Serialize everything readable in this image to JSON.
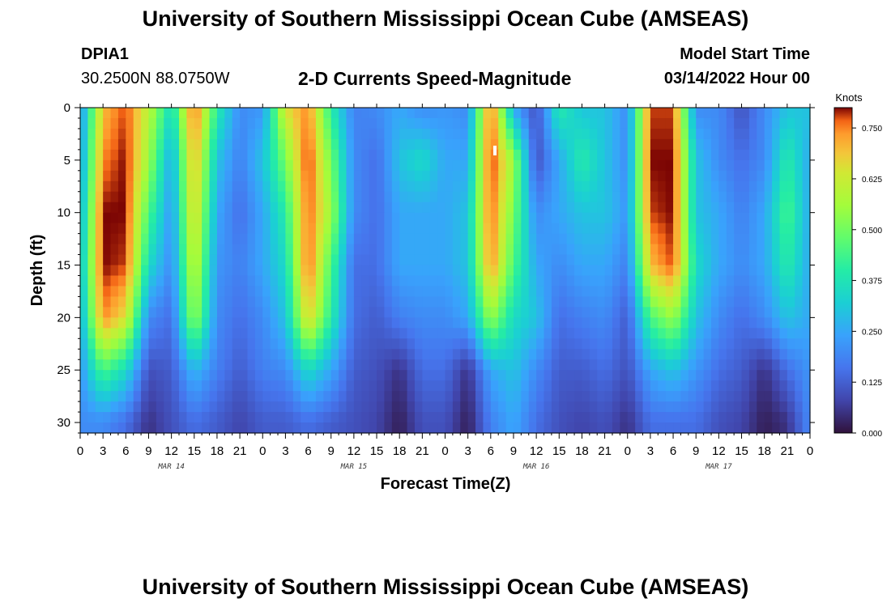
{
  "header": {
    "title_top": "University of Southern Mississippi Ocean Cube (AMSEAS)",
    "title_bottom": "University of Southern Mississippi Ocean Cube (AMSEAS)",
    "station": "DPIA1",
    "coords": "30.2500N  88.0750W",
    "subtitle": "2-D Currents Speed-Magnitude",
    "model_label": "Model Start Time",
    "model_time": "03/14/2022 Hour 00"
  },
  "chart_data": {
    "type": "heatmap",
    "title": "2-D Currents Speed-Magnitude",
    "xlabel": "Forecast Time(Z)",
    "ylabel": "Depth (ft)",
    "x_range_hours": [
      0,
      96
    ],
    "y_range_ft": [
      0,
      31
    ],
    "x_tick_hours": [
      0,
      3,
      6,
      9,
      12,
      15,
      18,
      21,
      24,
      27,
      30,
      33,
      36,
      39,
      42,
      45,
      48,
      51,
      54,
      57,
      60,
      63,
      66,
      69,
      72,
      75,
      78,
      81,
      84,
      87,
      90,
      93,
      96
    ],
    "x_tick_labels": [
      "0",
      "3",
      "6",
      "9",
      "12",
      "15",
      "18",
      "21",
      "0",
      "3",
      "6",
      "9",
      "12",
      "15",
      "18",
      "21",
      "0",
      "3",
      "6",
      "9",
      "12",
      "15",
      "18",
      "21",
      "0",
      "3",
      "6",
      "9",
      "12",
      "15",
      "18",
      "21",
      "0"
    ],
    "date_labels": [
      {
        "label": "MAR 14",
        "hour": 12
      },
      {
        "label": "MAR 15",
        "hour": 36
      },
      {
        "label": "MAR 16",
        "hour": 60
      },
      {
        "label": "MAR 17",
        "hour": 84
      }
    ],
    "y_ticks": [
      0,
      5,
      10,
      15,
      20,
      25,
      30
    ],
    "y_tick_labels": [
      "0",
      "5",
      "10",
      "15",
      "20",
      "25",
      "30"
    ],
    "colorbar": {
      "label": "Knots",
      "min": 0,
      "max": 0.8,
      "ticks": [
        0,
        0.125,
        0.25,
        0.375,
        0.5,
        0.625,
        0.75
      ],
      "tick_labels": [
        "0.000",
        "0.125",
        "0.250",
        "0.375",
        "0.500",
        "0.625",
        "0.750"
      ]
    },
    "depths_ft": [
      0,
      5,
      10,
      15,
      20,
      25,
      30
    ],
    "speed_knots_by_depth": [
      [
        0.2,
        0.7,
        0.78,
        0.6,
        0.35,
        0.78,
        0.4,
        0.2,
        0.22,
        0.65,
        0.75,
        0.4,
        0.18,
        0.2,
        0.25,
        0.2,
        0.22,
        0.2,
        0.78,
        0.25,
        0.1,
        0.4,
        0.3,
        0.3,
        0.2,
        0.78,
        0.78,
        0.2,
        0.2,
        0.1,
        0.2,
        0.3,
        0.3
      ],
      [
        0.22,
        0.75,
        0.8,
        0.55,
        0.25,
        0.72,
        0.3,
        0.18,
        0.3,
        0.5,
        0.8,
        0.5,
        0.2,
        0.15,
        0.3,
        0.35,
        0.25,
        0.25,
        0.8,
        0.55,
        0.1,
        0.25,
        0.4,
        0.3,
        0.2,
        0.8,
        0.8,
        0.3,
        0.2,
        0.15,
        0.2,
        0.4,
        0.25
      ],
      [
        0.25,
        0.8,
        0.8,
        0.45,
        0.22,
        0.68,
        0.25,
        0.15,
        0.25,
        0.4,
        0.78,
        0.55,
        0.2,
        0.15,
        0.25,
        0.25,
        0.25,
        0.3,
        0.78,
        0.5,
        0.2,
        0.25,
        0.3,
        0.3,
        0.22,
        0.78,
        0.8,
        0.3,
        0.25,
        0.18,
        0.25,
        0.45,
        0.25
      ],
      [
        0.28,
        0.8,
        0.78,
        0.35,
        0.2,
        0.62,
        0.22,
        0.18,
        0.25,
        0.35,
        0.78,
        0.45,
        0.15,
        0.15,
        0.25,
        0.25,
        0.25,
        0.3,
        0.75,
        0.45,
        0.25,
        0.2,
        0.25,
        0.25,
        0.18,
        0.7,
        0.78,
        0.35,
        0.25,
        0.2,
        0.25,
        0.4,
        0.25
      ],
      [
        0.25,
        0.75,
        0.65,
        0.2,
        0.15,
        0.55,
        0.2,
        0.15,
        0.2,
        0.3,
        0.68,
        0.4,
        0.15,
        0.12,
        0.18,
        0.2,
        0.2,
        0.25,
        0.55,
        0.35,
        0.3,
        0.15,
        0.18,
        0.2,
        0.12,
        0.45,
        0.55,
        0.3,
        0.2,
        0.15,
        0.2,
        0.3,
        0.25
      ],
      [
        0.22,
        0.45,
        0.35,
        0.1,
        0.12,
        0.28,
        0.18,
        0.12,
        0.18,
        0.2,
        0.35,
        0.25,
        0.12,
        0.1,
        0.05,
        0.15,
        0.15,
        0.05,
        0.25,
        0.3,
        0.2,
        0.12,
        0.12,
        0.15,
        0.1,
        0.25,
        0.3,
        0.22,
        0.15,
        0.12,
        0.05,
        0.15,
        0.22
      ],
      [
        0.2,
        0.2,
        0.15,
        0.05,
        0.1,
        0.15,
        0.12,
        0.08,
        0.12,
        0.12,
        0.15,
        0.12,
        0.1,
        0.08,
        0.02,
        0.1,
        0.1,
        0.02,
        0.18,
        0.25,
        0.15,
        0.1,
        0.08,
        0.1,
        0.05,
        0.15,
        0.15,
        0.15,
        0.1,
        0.08,
        0.02,
        0.05,
        0.2
      ]
    ]
  }
}
